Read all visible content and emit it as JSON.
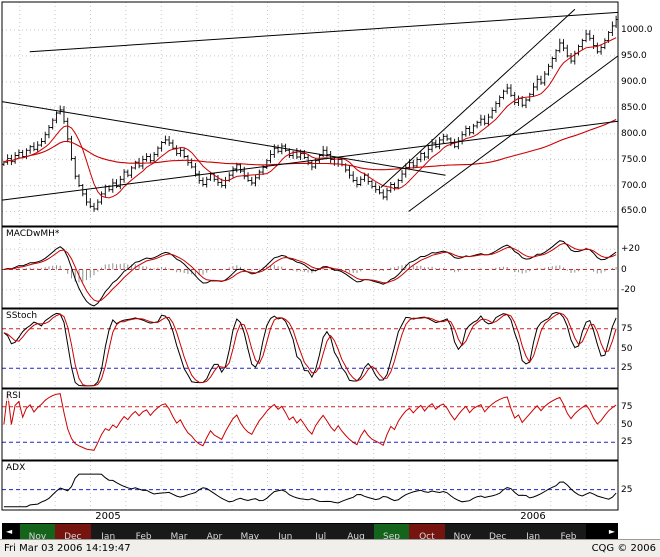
{
  "status_bar": {
    "datetime": "Fri Mar 03 2006 14:19:47",
    "copyright": "CQG © 2006"
  },
  "chart_data": {
    "type": "ohlc",
    "title": "",
    "legend_position": "none",
    "grid": "dotted",
    "colors": {
      "bar": "#000000",
      "ma_fast": "#cc0000",
      "ma_slow": "#cc0000",
      "macd_line": "#000000",
      "macd_signal": "#cc0000",
      "macd_hist": "#8f8f8f",
      "stoch_k": "#000000",
      "stoch_d": "#cc0000",
      "rsi": "#cc0000",
      "adx": "#000000",
      "trendline": "#000000",
      "grid": "#c9c9c9",
      "upper_band": "#cc2222",
      "lower_band": "#2222cc"
    },
    "panels": [
      {
        "id": "price",
        "label": "",
        "ylim": [
          622,
          1054
        ],
        "ticks": [
          {
            "v": 1000,
            "label": "1000.0"
          },
          {
            "v": 950,
            "label": "950.0"
          },
          {
            "v": 900,
            "label": "900.0"
          },
          {
            "v": 850,
            "label": "850.0"
          },
          {
            "v": 800,
            "label": "800.0"
          },
          {
            "v": 750,
            "label": "750.0"
          },
          {
            "v": 700,
            "label": "700.0"
          },
          {
            "v": 650,
            "label": "650.0"
          }
        ],
        "grid": [
          1000,
          950,
          900,
          850,
          800,
          750,
          700,
          650
        ],
        "hlines": []
      },
      {
        "id": "macd",
        "label": "MACDwMH*",
        "ylim": [
          -38,
          42
        ],
        "ticks": [
          {
            "v": 20,
            "label": "+20"
          },
          {
            "v": 0,
            "label": "0"
          },
          {
            "v": -20,
            "label": "-20"
          }
        ],
        "grid": [
          20,
          -20
        ],
        "hlines": [
          {
            "v": 0,
            "color": "#cc2222"
          }
        ]
      },
      {
        "id": "sstoch",
        "label": "SStoch",
        "ylim": [
          0,
          100
        ],
        "ticks": [
          {
            "v": 75,
            "label": "75"
          },
          {
            "v": 50,
            "label": "50"
          },
          {
            "v": 25,
            "label": "25"
          }
        ],
        "grid": [
          50
        ],
        "hlines": [
          {
            "v": 75,
            "color": "#cc2222"
          },
          {
            "v": 25,
            "color": "#2222cc"
          }
        ]
      },
      {
        "id": "rsi",
        "label": "RSI",
        "ylim": [
          0,
          100
        ],
        "ticks": [
          {
            "v": 75,
            "label": "75"
          },
          {
            "v": 50,
            "label": "50"
          },
          {
            "v": 25,
            "label": "25"
          }
        ],
        "grid": [
          50
        ],
        "hlines": [
          {
            "v": 75,
            "color": "#cc2222"
          },
          {
            "v": 25,
            "color": "#2222cc"
          }
        ]
      },
      {
        "id": "adx",
        "label": "ADX",
        "ylim": [
          0,
          60
        ],
        "ticks": [
          {
            "v": 25,
            "label": "25"
          }
        ],
        "grid": [],
        "hlines": [
          {
            "v": 25,
            "color": "#2222cc"
          }
        ]
      }
    ],
    "indicators": {
      "ma_fast": 8,
      "ma_slow": 80,
      "macd": [
        6,
        13,
        4
      ],
      "stoch": [
        7,
        3,
        3
      ],
      "rsi": 7,
      "adx_proxy": [
        5,
        10
      ]
    },
    "closes": [
      745,
      752,
      746,
      758,
      764,
      756,
      768,
      775,
      770,
      778,
      785,
      798,
      812,
      826,
      840,
      846,
      824,
      790,
      752,
      718,
      700,
      684,
      668,
      660,
      655,
      668,
      684,
      698,
      692,
      705,
      698,
      712,
      726,
      720,
      734,
      745,
      738,
      750,
      756,
      748,
      760,
      772,
      783,
      788,
      782,
      772,
      762,
      768,
      756,
      744,
      736,
      722,
      710,
      702,
      712,
      722,
      712,
      706,
      700,
      710,
      720,
      732,
      740,
      728,
      718,
      710,
      705,
      715,
      726,
      735,
      748,
      760,
      772,
      766,
      776,
      768,
      758,
      764,
      755,
      762,
      754,
      744,
      736,
      748,
      758,
      768,
      760,
      750,
      742,
      750,
      740,
      730,
      720,
      710,
      702,
      712,
      720,
      708,
      698,
      692,
      686,
      678,
      690,
      702,
      696,
      710,
      722,
      735,
      744,
      738,
      750,
      762,
      755,
      770,
      782,
      775,
      788,
      795,
      790,
      782,
      775,
      786,
      798,
      810,
      802,
      815,
      822,
      828,
      820,
      832,
      845,
      858,
      870,
      882,
      888,
      874,
      860,
      868,
      855,
      865,
      876,
      890,
      905,
      898,
      915,
      930,
      945,
      960,
      975,
      965,
      950,
      940,
      955,
      968,
      980,
      992,
      984,
      970,
      958,
      966,
      980,
      995,
      1008,
      1020
    ],
    "trendlines": [
      {
        "x1": 0.045,
        "p1": 958,
        "x2": 1.0,
        "p2": 1034
      },
      {
        "x1": 0.0,
        "p1": 862,
        "x2": 0.72,
        "p2": 720
      },
      {
        "x1": 0.0,
        "p1": 672,
        "x2": 1.0,
        "p2": 824
      },
      {
        "x1": 0.615,
        "p1": 696,
        "x2": 0.93,
        "p2": 1040
      },
      {
        "x1": 0.66,
        "p1": 650,
        "x2": 1.0,
        "p2": 950
      }
    ],
    "months": [
      {
        "label": "",
        "w": 0.5,
        "color": "#000000"
      },
      {
        "label": "Nov",
        "w": 1,
        "color": "#15641c"
      },
      {
        "label": "Dec",
        "w": 1,
        "color": "#76150f"
      },
      {
        "label": "Jan",
        "w": 1,
        "color": "#191919"
      },
      {
        "label": "Feb",
        "w": 1,
        "color": "#191919"
      },
      {
        "label": "Mar",
        "w": 1,
        "color": "#191919"
      },
      {
        "label": "Apr",
        "w": 1,
        "color": "#191919"
      },
      {
        "label": "May",
        "w": 1,
        "color": "#191919"
      },
      {
        "label": "Jun",
        "w": 1,
        "color": "#191919"
      },
      {
        "label": "Jul",
        "w": 1,
        "color": "#191919"
      },
      {
        "label": "Aug",
        "w": 1,
        "color": "#191919"
      },
      {
        "label": "Sep",
        "w": 1,
        "color": "#15641c"
      },
      {
        "label": "Oct",
        "w": 1,
        "color": "#76150f"
      },
      {
        "label": "Nov",
        "w": 1,
        "color": "#191919"
      },
      {
        "label": "Dec",
        "w": 1,
        "color": "#191919"
      },
      {
        "label": "Jan",
        "w": 1,
        "color": "#191919"
      },
      {
        "label": "Feb",
        "w": 1,
        "color": "#191919"
      },
      {
        "label": "",
        "w": 0.9,
        "color": "#000000"
      }
    ],
    "years": [
      {
        "label": "2005",
        "segment_index": 3
      },
      {
        "label": "2006",
        "segment_index": 15
      }
    ],
    "timescale": {
      "scroll_left": "◄",
      "scroll_right": "►"
    }
  }
}
